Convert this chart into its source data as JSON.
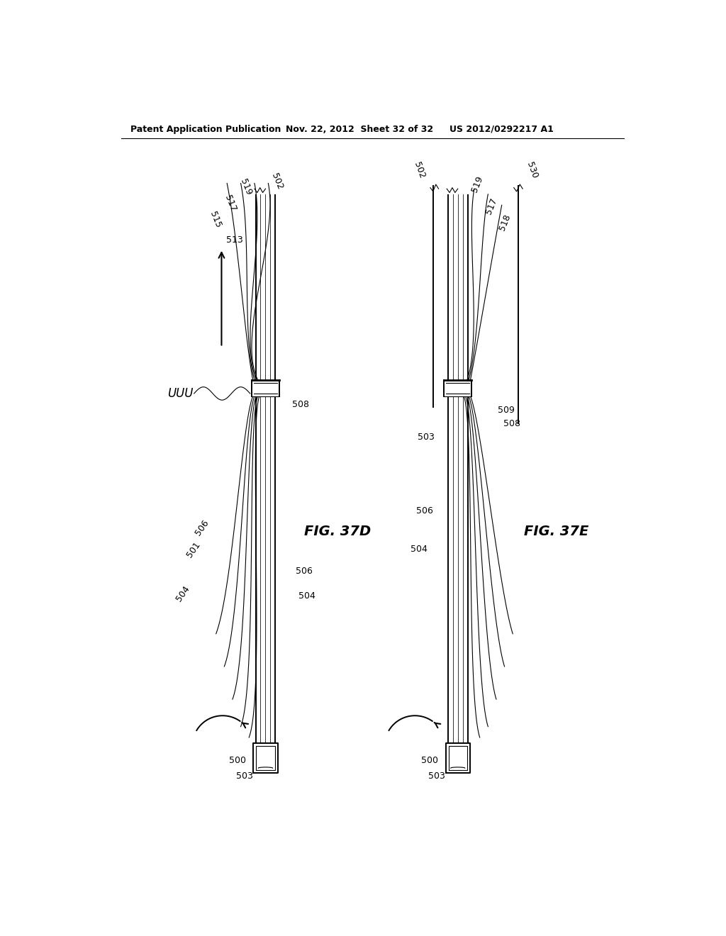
{
  "bg": "#ffffff",
  "lc": "#000000",
  "header_left": "Patent Application Publication",
  "header_mid": "Nov. 22, 2012  Sheet 32 of 32",
  "header_right": "US 2012/0292217 A1",
  "fig_D_label": "FIG. 37D",
  "fig_E_label": "FIG. 37E",
  "lw_thin": 0.8,
  "lw_med": 1.4,
  "lw_thick": 2.0
}
